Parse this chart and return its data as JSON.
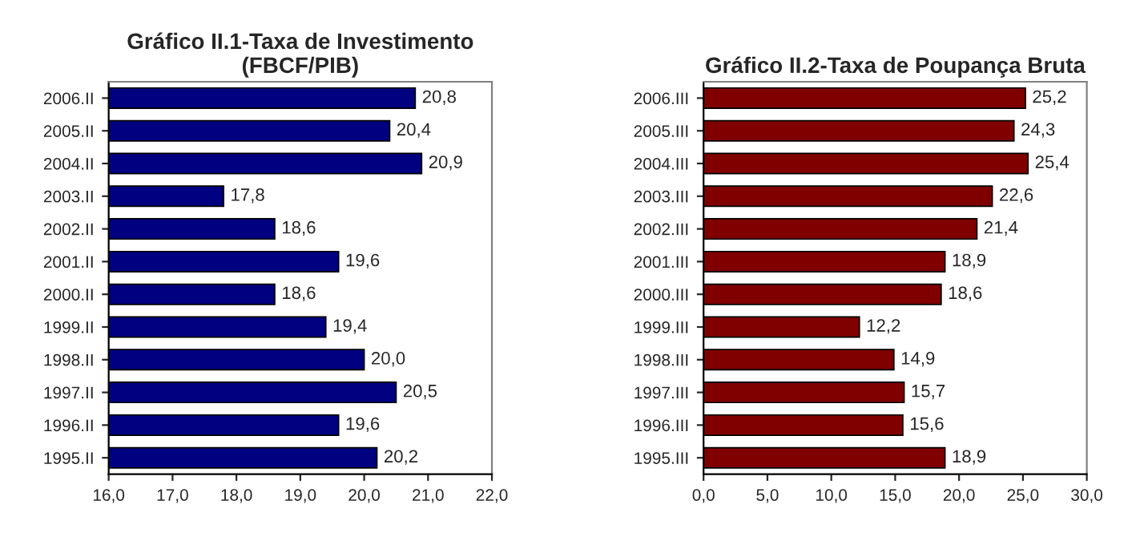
{
  "chart_data": [
    {
      "type": "bar",
      "orientation": "horizontal",
      "title": "Gráfico II.1-Taxa de Investimento\n(FBCF/PIB)",
      "categories": [
        "2006.II",
        "2005.II",
        "2004.II",
        "2003.II",
        "2002.II",
        "2001.II",
        "2000.II",
        "1999.II",
        "1998.II",
        "1997.II",
        "1996.II",
        "1995.II"
      ],
      "values": [
        20.8,
        20.4,
        20.9,
        17.8,
        18.6,
        19.6,
        18.6,
        19.4,
        20.0,
        20.5,
        19.6,
        20.2
      ],
      "value_labels": [
        "20,8",
        "20,4",
        "20,9",
        "17,8",
        "18,6",
        "19,6",
        "18,6",
        "19,4",
        "20,0",
        "20,5",
        "19,6",
        "20,2"
      ],
      "color": "#000080",
      "xlim": [
        16,
        22
      ],
      "xticks": [
        {
          "value": 16,
          "label": "16,0"
        },
        {
          "value": 17,
          "label": "17,0"
        },
        {
          "value": 18,
          "label": "18,0"
        },
        {
          "value": 19,
          "label": "19,0"
        },
        {
          "value": 20,
          "label": "20,0"
        },
        {
          "value": 21,
          "label": "21,0"
        },
        {
          "value": 22,
          "label": "22,0"
        }
      ],
      "grid": false,
      "legend": false
    },
    {
      "type": "bar",
      "orientation": "horizontal",
      "title": "Gráfico II.2-Taxa de Poupança Bruta",
      "categories": [
        "2006.III",
        "2005.III",
        "2004.III",
        "2003.III",
        "2002.III",
        "2001.III",
        "2000.III",
        "1999.III",
        "1998.III",
        "1997.III",
        "1996.III",
        "1995.III"
      ],
      "values": [
        25.2,
        24.3,
        25.4,
        22.6,
        21.4,
        18.9,
        18.6,
        12.2,
        14.9,
        15.7,
        15.6,
        18.9
      ],
      "value_labels": [
        "25,2",
        "24,3",
        "25,4",
        "22,6",
        "21,4",
        "18,9",
        "18,6",
        "12,2",
        "14,9",
        "15,7",
        "15,6",
        "18,9"
      ],
      "color": "#800000",
      "xlim": [
        0,
        30
      ],
      "xticks": [
        {
          "value": 0,
          "label": "0,0"
        },
        {
          "value": 5,
          "label": "5,0"
        },
        {
          "value": 10,
          "label": "10,0"
        },
        {
          "value": 15,
          "label": "15,0"
        },
        {
          "value": 20,
          "label": "20,0"
        },
        {
          "value": 25,
          "label": "25,0"
        },
        {
          "value": 30,
          "label": "30,0"
        }
      ],
      "grid": false,
      "legend": false
    }
  ]
}
